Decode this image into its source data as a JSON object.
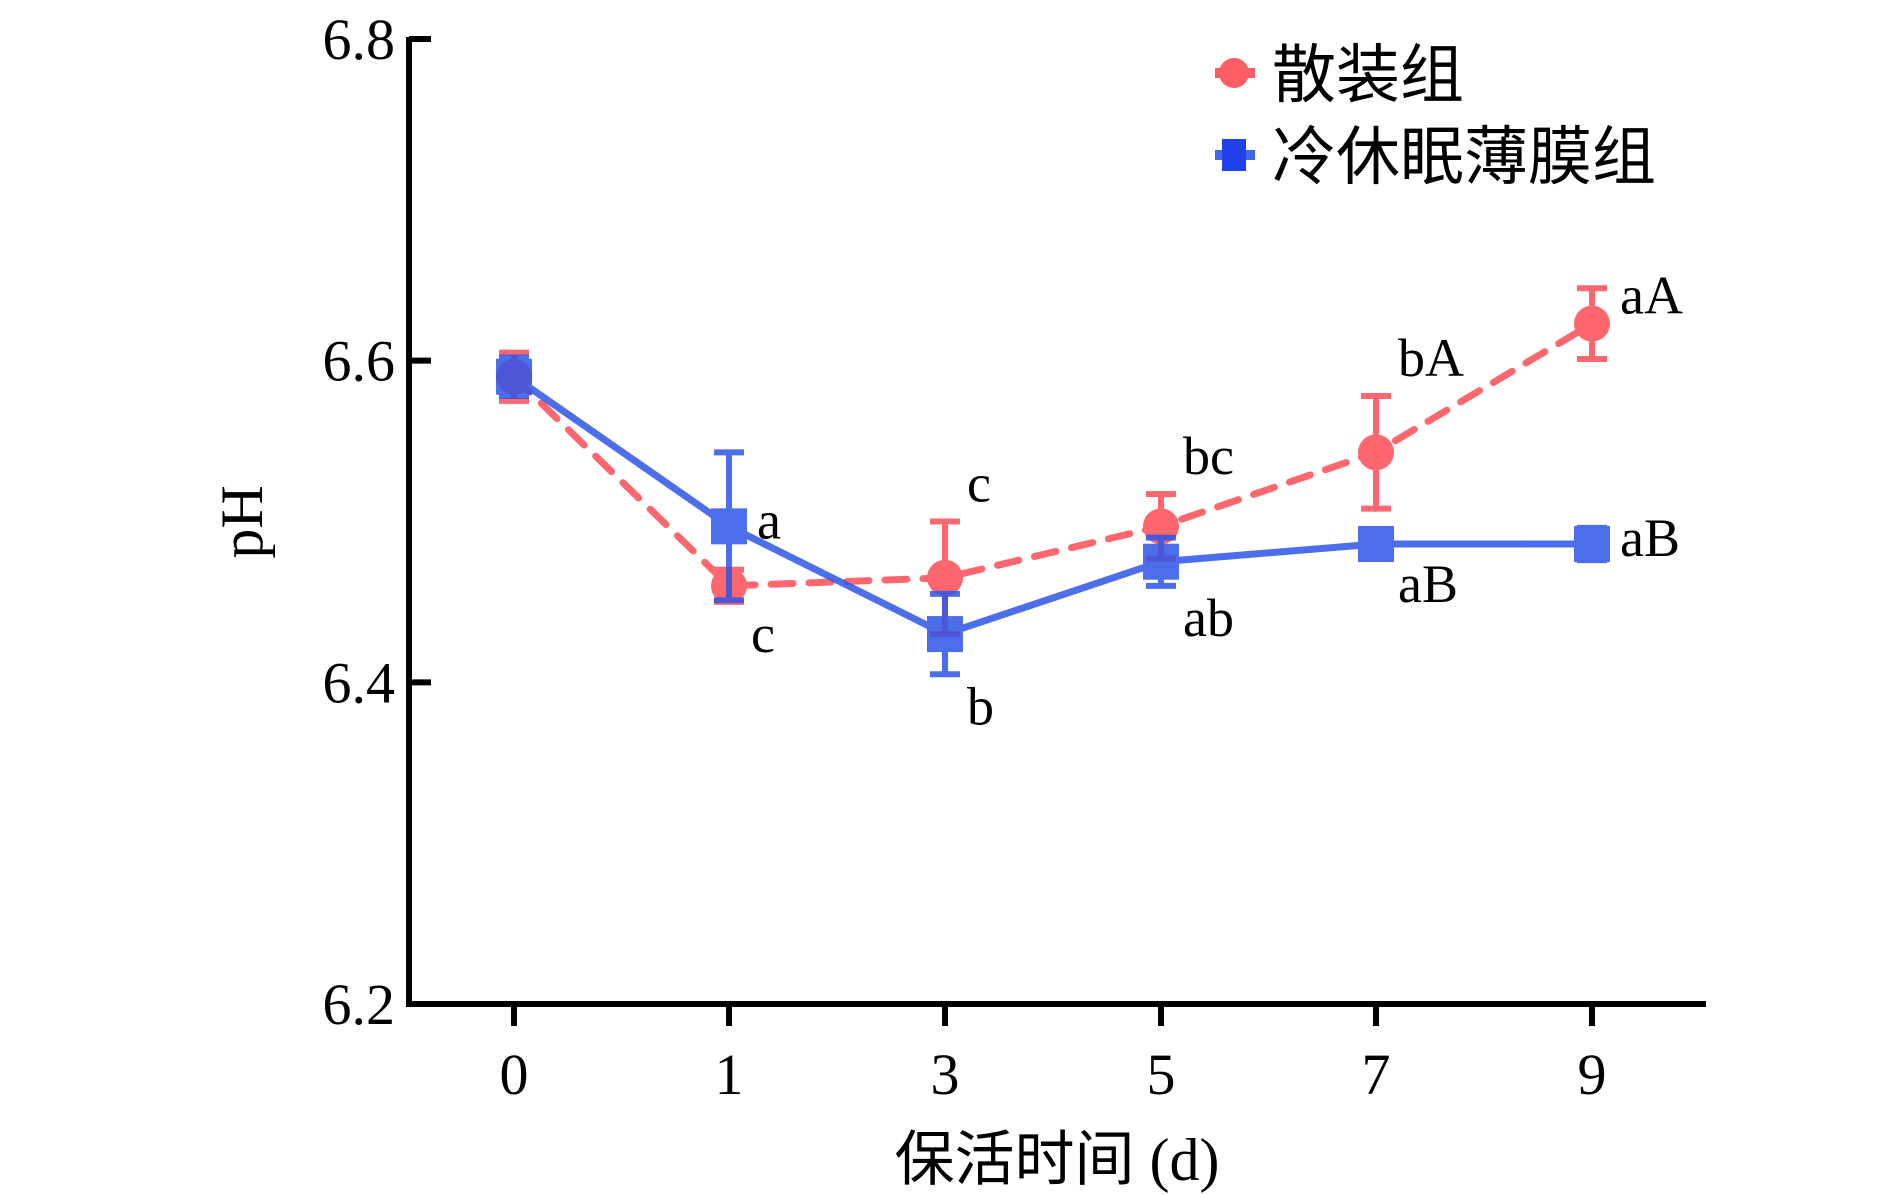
{
  "chart_data": {
    "type": "line",
    "title": "",
    "xlabel": "保活时间 (d)",
    "ylabel": "pH",
    "categories": [
      "0",
      "1",
      "3",
      "5",
      "7",
      "9"
    ],
    "ylim": [
      6.2,
      6.8
    ],
    "yticks": [
      "6.2",
      "6.4",
      "6.6",
      "6.8"
    ],
    "grid": false,
    "legend_position": "top-right",
    "series": [
      {
        "name": "散装组",
        "color": "#ff4d55",
        "marker": "circle",
        "dash": true,
        "values": [
          6.59,
          6.46,
          6.465,
          6.497,
          6.543,
          6.623
        ],
        "errors": [
          0.015,
          0.01,
          0.035,
          0.02,
          0.035,
          0.022
        ],
        "labels": [
          "",
          "c",
          "c",
          "bc",
          "bA",
          "aA"
        ],
        "label_pos": [
          "",
          "below",
          "above",
          "above",
          "above",
          "right"
        ]
      },
      {
        "name": "冷休眠薄膜组",
        "color": "#2f55e8",
        "marker": "square",
        "dash": false,
        "values": [
          6.59,
          6.497,
          6.43,
          6.475,
          6.486,
          6.486
        ],
        "errors": [
          0.012,
          0.046,
          0.025,
          0.015,
          0.005,
          0.01
        ],
        "labels": [
          "",
          "a",
          "b",
          "ab",
          "aB",
          "aB"
        ],
        "label_pos": [
          "",
          "right",
          "below",
          "below",
          "below",
          "right"
        ]
      }
    ]
  }
}
